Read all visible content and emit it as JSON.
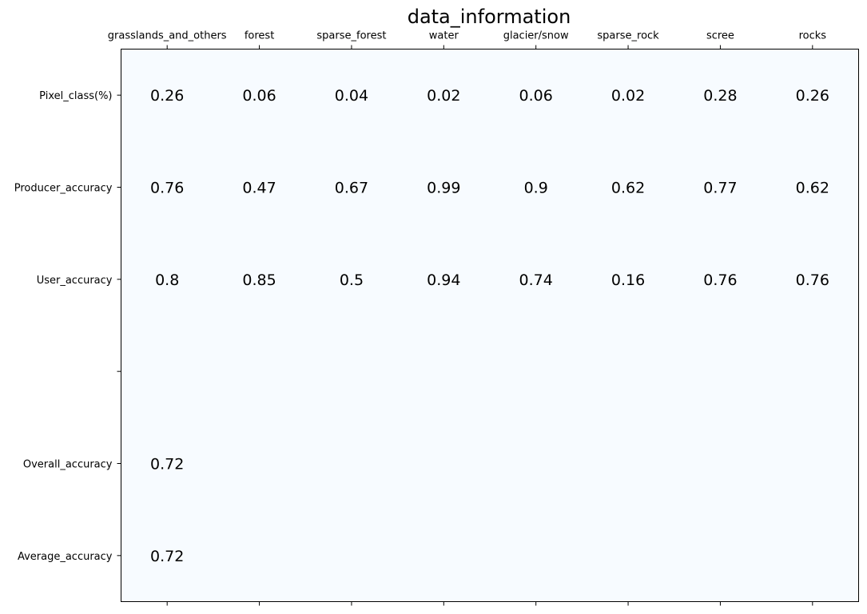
{
  "chart_data": {
    "type": "table",
    "title": "data_information",
    "columns": [
      "grasslands_and_others",
      "forest",
      "sparse_forest",
      "water",
      "glacier/snow",
      "sparse_rock",
      "scree",
      "rocks"
    ],
    "row_labels": [
      "Pixel_class(%)",
      "Producer_accuracy",
      "User_accuracy",
      "",
      "Overall_accuracy",
      "Average_accuracy"
    ],
    "rows": [
      [
        "0.26",
        "0.06",
        "0.04",
        "0.02",
        "0.06",
        "0.02",
        "0.28",
        "0.26"
      ],
      [
        "0.76",
        "0.47",
        "0.67",
        "0.99",
        "0.9",
        "0.62",
        "0.77",
        "0.62"
      ],
      [
        "0.8",
        "0.85",
        "0.5",
        "0.94",
        "0.74",
        "0.16",
        "0.76",
        "0.76"
      ],
      [
        "",
        "",
        "",
        "",
        "",
        "",
        "",
        ""
      ],
      [
        "0.72",
        "",
        "",
        "",
        "",
        "",
        "",
        ""
      ],
      [
        "0.72",
        "",
        "",
        "",
        "",
        "",
        "",
        ""
      ]
    ],
    "background_color": "#f7fbff",
    "text_color": "#000000",
    "grid": false
  }
}
